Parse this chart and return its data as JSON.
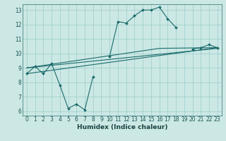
{
  "title": "",
  "xlabel": "Humidex (Indice chaleur)",
  "ylabel": "",
  "bg_color": "#cce8e4",
  "grid_color": "#99cccc",
  "line_color": "#1a6b6b",
  "xlim": [
    -0.5,
    23.5
  ],
  "ylim": [
    5.7,
    13.4
  ],
  "yticks": [
    6,
    7,
    8,
    9,
    10,
    11,
    12,
    13
  ],
  "xticks": [
    0,
    1,
    2,
    3,
    4,
    5,
    6,
    7,
    8,
    9,
    10,
    11,
    12,
    13,
    14,
    15,
    16,
    17,
    18,
    19,
    20,
    21,
    22,
    23
  ],
  "line1_x": [
    0,
    1,
    2,
    3,
    4,
    5,
    6,
    7,
    8,
    9,
    10,
    11,
    12,
    13,
    14,
    15,
    16,
    17,
    18,
    19,
    20,
    21,
    22,
    23
  ],
  "line1_y": [
    8.6,
    9.1,
    8.6,
    9.3,
    7.8,
    6.2,
    6.5,
    6.1,
    8.4,
    null,
    9.8,
    12.2,
    12.1,
    12.6,
    13.0,
    13.0,
    13.2,
    12.4,
    11.8,
    null,
    10.3,
    10.4,
    10.6,
    10.4
  ],
  "line2_x": [
    0,
    23
  ],
  "line2_y": [
    8.6,
    10.4
  ],
  "line3_x": [
    0,
    23
  ],
  "line3_y": [
    9.0,
    10.35
  ],
  "line4_x": [
    0,
    16,
    23
  ],
  "line4_y": [
    9.0,
    10.35,
    10.4
  ],
  "tick_fontsize": 5.5,
  "xlabel_fontsize": 6.5
}
